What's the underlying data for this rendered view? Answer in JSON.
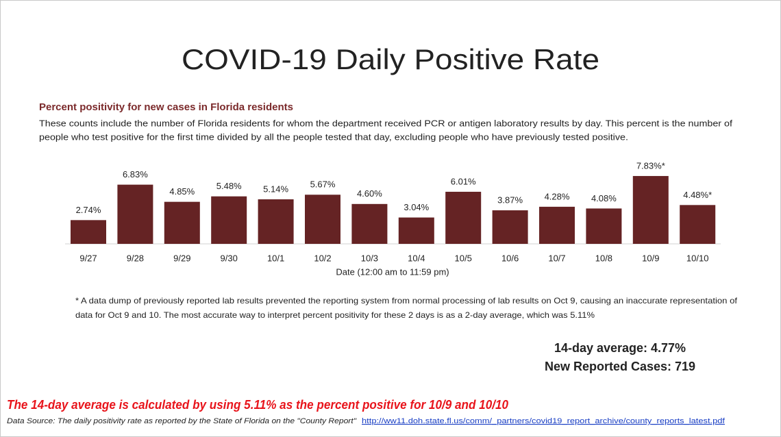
{
  "slide": {
    "title": "COVID-19 Daily Positive Rate"
  },
  "chart_data": {
    "type": "bar",
    "title": "Percent positivity for new cases in Florida residents",
    "description": [
      "These counts include the number of Florida residents for whom the department received PCR or antigen laboratory results by day. This percent is the number of",
      "people who test positive for the first time divided by all the people tested that day, excluding people who have previously tested positive."
    ],
    "categories": [
      "9/27",
      "9/28",
      "9/29",
      "9/30",
      "10/1",
      "10/2",
      "10/3",
      "10/4",
      "10/5",
      "10/6",
      "10/7",
      "10/8",
      "10/9",
      "10/10"
    ],
    "values": [
      2.74,
      6.83,
      4.85,
      5.48,
      5.14,
      5.67,
      4.6,
      3.04,
      6.01,
      3.87,
      4.28,
      4.08,
      7.83,
      4.48
    ],
    "value_labels": [
      "2.74%",
      "6.83%",
      "4.85%",
      "5.48%",
      "5.14%",
      "5.67%",
      "4.60%",
      "3.04%",
      "6.01%",
      "3.87%",
      "4.28%",
      "4.08%",
      "7.83%*",
      "4.48%*"
    ],
    "color": "#652324",
    "x_label": "Date (12:00 am to 11:59 pm)",
    "footnote": [
      "* A data dump of previously reported lab results prevented the reporting system from normal processing of lab results on Oct 9, causing an inaccurate representation of",
      "data for Oct 9 and 10. The most accurate way to interpret percent positivity for these 2 days is as a 2-day average, which was 5.11%"
    ]
  },
  "summary": [
    "14-day average: 4.77%",
    "New Reported Cases: 719"
  ],
  "notes": {
    "calculation": "The 14-day average is calculated by using 5.11% as the percent positive for 10/9 and 10/10",
    "source": "Data Source: The daily positivity rate as reported by the State of Florida on the \"County Report\"",
    "link": "http://ww11.doh.state.fl.us/comm/_partners/covid19_report_archive/county_reports_latest.pdf"
  }
}
